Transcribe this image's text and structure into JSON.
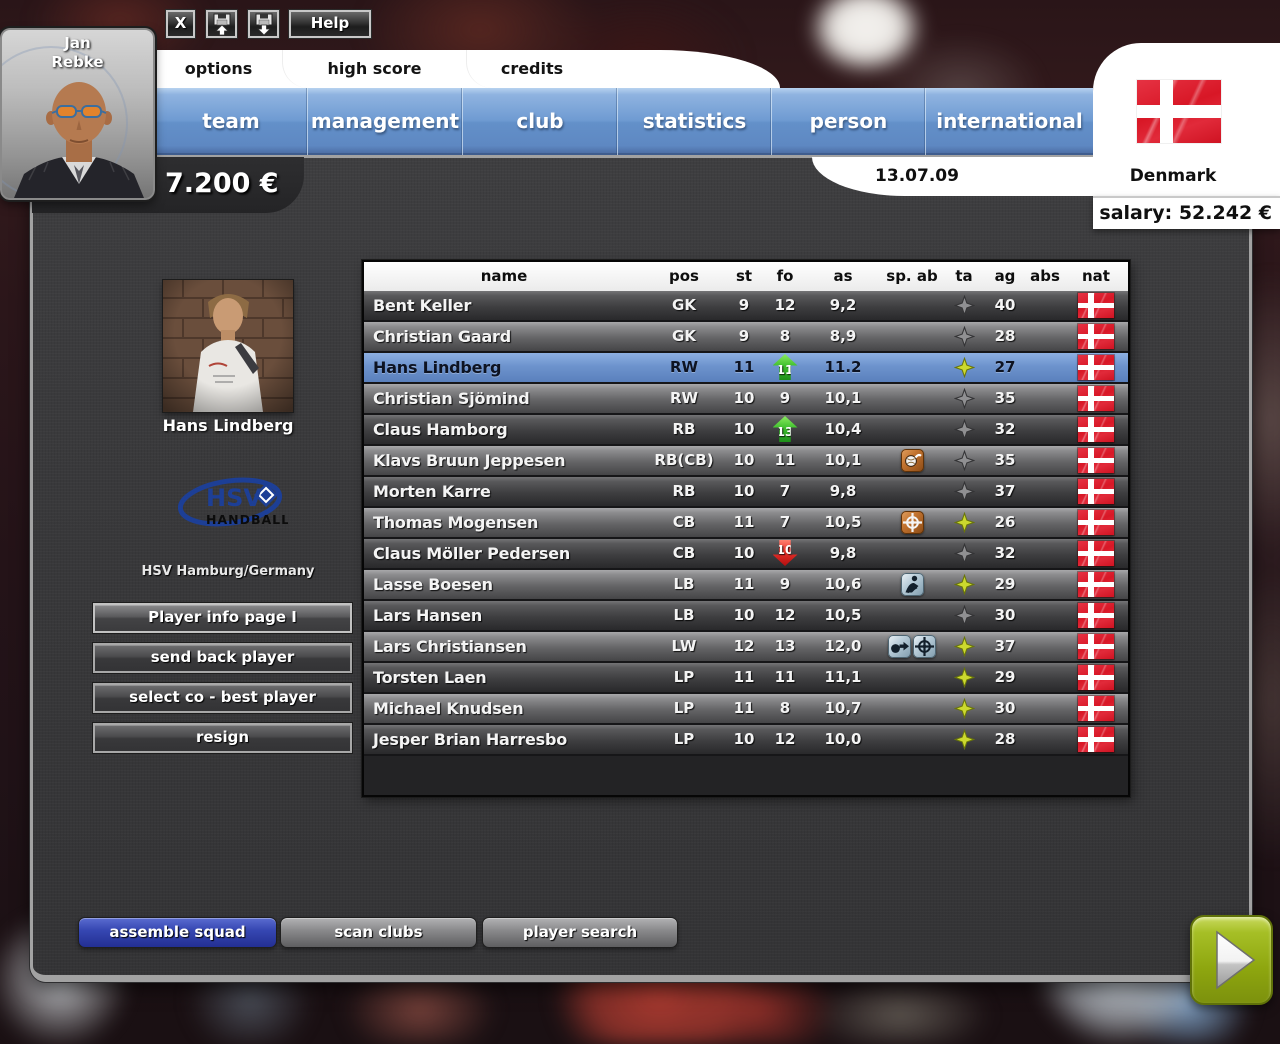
{
  "toolbar": {
    "close_label": "X",
    "help_label": "Help",
    "icons": [
      "close-icon",
      "floppy-load-icon",
      "floppy-save-icon"
    ]
  },
  "manager": {
    "first_name": "Jan",
    "last_name": "Rebke"
  },
  "budget": "7.200 €",
  "tabs": [
    {
      "label": "options"
    },
    {
      "label": "high score"
    },
    {
      "label": "credits"
    }
  ],
  "nav": [
    {
      "label": "team"
    },
    {
      "label": "management"
    },
    {
      "label": "club"
    },
    {
      "label": "statistics"
    },
    {
      "label": "person"
    },
    {
      "label": "international"
    }
  ],
  "country_panel": {
    "flag": "denmark-flag",
    "date": "13.07.09",
    "country": "Denmark",
    "salary": "salary: 52.242 €"
  },
  "selected_player": {
    "name": "Hans Lindberg",
    "club": "HSV Hamburg/Germany",
    "club_logo": {
      "abbr": "HSV",
      "word": "HANDBALL"
    }
  },
  "side_buttons": [
    {
      "label": "Player info page I"
    },
    {
      "label": "send back player"
    },
    {
      "label": "select co - best player"
    },
    {
      "label": "resign"
    }
  ],
  "squad_table": {
    "headers": [
      "name",
      "pos",
      "st",
      "fo",
      "as",
      "sp. ab",
      "ta",
      "ag",
      "abs",
      "nat"
    ],
    "rows": [
      {
        "name": "Bent Keller",
        "pos": "GK",
        "st": "9",
        "fo": "12",
        "trend": "none",
        "as": "9,2",
        "abilities": [],
        "talent": "gray",
        "ag": "40",
        "abs": "",
        "nat": "denmark",
        "selected": false
      },
      {
        "name": "Christian Gaard",
        "pos": "GK",
        "st": "9",
        "fo": "8",
        "trend": "none",
        "as": "8,9",
        "abilities": [],
        "talent": "gray",
        "ag": "28",
        "abs": "",
        "nat": "denmark",
        "selected": false
      },
      {
        "name": "Hans Lindberg",
        "pos": "RW",
        "st": "11",
        "fo": "11",
        "trend": "up",
        "as": "11.2",
        "abilities": [],
        "talent": "yellow",
        "ag": "27",
        "abs": "",
        "nat": "denmark",
        "selected": true
      },
      {
        "name": "Christian Sjömind",
        "pos": "RW",
        "st": "10",
        "fo": "9",
        "trend": "none",
        "as": "10,1",
        "abilities": [],
        "talent": "gray",
        "ag": "35",
        "abs": "",
        "nat": "denmark",
        "selected": false
      },
      {
        "name": "Claus Hamborg",
        "pos": "RB",
        "st": "10",
        "fo": "13",
        "trend": "up",
        "as": "10,4",
        "abilities": [],
        "talent": "gray",
        "ag": "32",
        "abs": "",
        "nat": "denmark",
        "selected": false
      },
      {
        "name": "Klavs Bruun Jeppesen",
        "pos": "RB(CB)",
        "st": "10",
        "fo": "11",
        "trend": "none",
        "as": "10,1",
        "abilities": [
          "orange-ball"
        ],
        "talent": "gray",
        "ag": "35",
        "abs": "",
        "nat": "denmark",
        "selected": false
      },
      {
        "name": "Morten Karre",
        "pos": "RB",
        "st": "10",
        "fo": "7",
        "trend": "none",
        "as": "9,8",
        "abilities": [],
        "talent": "gray",
        "ag": "37",
        "abs": "",
        "nat": "denmark",
        "selected": false
      },
      {
        "name": "Thomas Mogensen",
        "pos": "CB",
        "st": "11",
        "fo": "7",
        "trend": "none",
        "as": "10,5",
        "abilities": [
          "orange-target"
        ],
        "talent": "yellow",
        "ag": "26",
        "abs": "",
        "nat": "denmark",
        "selected": false
      },
      {
        "name": "Claus Möller Pedersen",
        "pos": "CB",
        "st": "10",
        "fo": "10",
        "trend": "down",
        "as": "9,8",
        "abilities": [],
        "talent": "gray",
        "ag": "32",
        "abs": "",
        "nat": "denmark",
        "selected": false
      },
      {
        "name": "Lasse Boesen",
        "pos": "LB",
        "st": "11",
        "fo": "9",
        "trend": "none",
        "as": "10,6",
        "abilities": [
          "blue-player"
        ],
        "talent": "yellow",
        "ag": "29",
        "abs": "",
        "nat": "denmark",
        "selected": false
      },
      {
        "name": "Lars Hansen",
        "pos": "LB",
        "st": "10",
        "fo": "12",
        "trend": "none",
        "as": "10,5",
        "abilities": [],
        "talent": "gray",
        "ag": "30",
        "abs": "",
        "nat": "denmark",
        "selected": false
      },
      {
        "name": "Lars Christiansen",
        "pos": "LW",
        "st": "12",
        "fo": "13",
        "trend": "none",
        "as": "12,0",
        "abilities": [
          "blue-hand",
          "blue-target"
        ],
        "talent": "yellow",
        "ag": "37",
        "abs": "",
        "nat": "denmark",
        "selected": false
      },
      {
        "name": "Torsten Laen",
        "pos": "LP",
        "st": "11",
        "fo": "11",
        "trend": "none",
        "as": "11,1",
        "abilities": [],
        "talent": "yellow",
        "ag": "29",
        "abs": "",
        "nat": "denmark",
        "selected": false
      },
      {
        "name": "Michael Knudsen",
        "pos": "LP",
        "st": "11",
        "fo": "8",
        "trend": "none",
        "as": "10,7",
        "abilities": [],
        "talent": "yellow",
        "ag": "30",
        "abs": "",
        "nat": "denmark",
        "selected": false
      },
      {
        "name": "Jesper Brian Harresbo",
        "pos": "LP",
        "st": "10",
        "fo": "12",
        "trend": "none",
        "as": "10,0",
        "abilities": [],
        "talent": "yellow",
        "ag": "28",
        "abs": "",
        "nat": "denmark",
        "selected": false
      }
    ]
  },
  "bottom_buttons": [
    {
      "label": "assemble squad",
      "variant": "blue"
    },
    {
      "label": "scan clubs",
      "variant": "gray"
    },
    {
      "label": "player search",
      "variant": "gray"
    }
  ],
  "next_button": {
    "icon": "play-arrow-icon"
  },
  "colors": {
    "nav_blue": "#6d98d0",
    "selected_row_blue": "#6b91cc",
    "flag_red": "#d81726",
    "talent_yellow": "#ccd92e",
    "form_up_green": "#3fbf2e",
    "form_down_red": "#d92020",
    "assemble_blue": "#3647b2",
    "next_green": "#8ea60f"
  }
}
